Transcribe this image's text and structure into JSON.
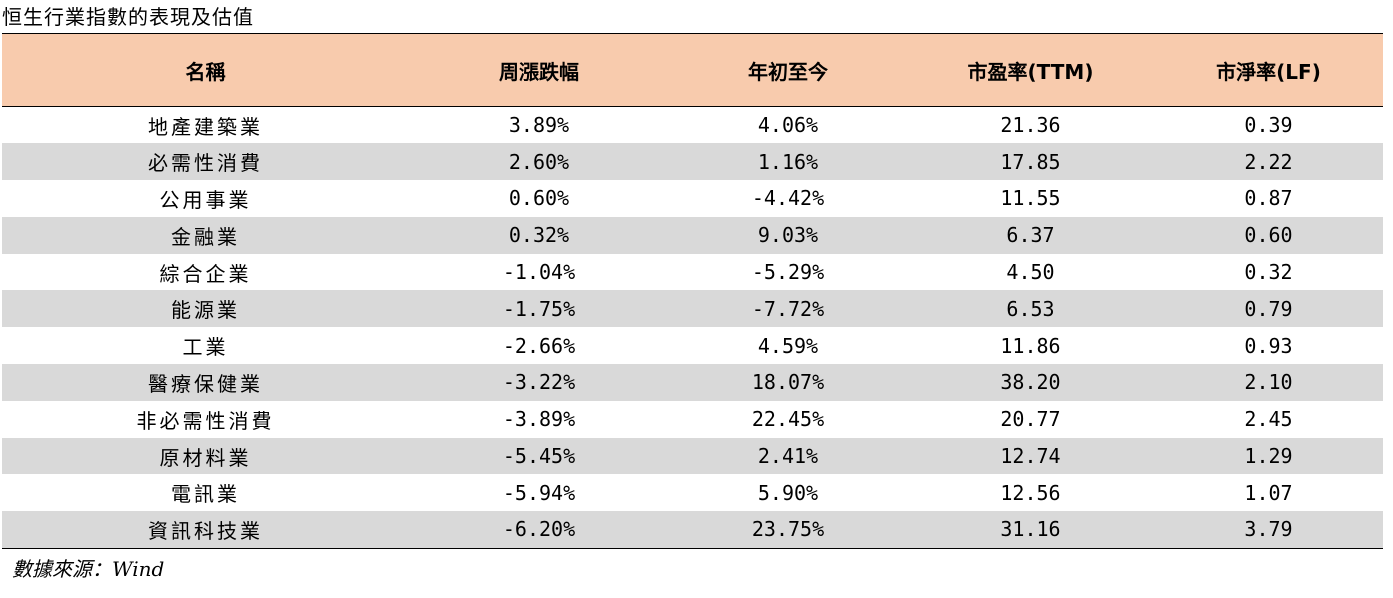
{
  "title": "恒生行業指數的表現及估值",
  "table": {
    "headers": [
      "名稱",
      "周漲跌幅",
      "年初至今",
      "市盈率(TTM)",
      "市淨率(LF)"
    ],
    "rows": [
      {
        "name": "地產建築業",
        "weekly": "3.89%",
        "ytd": "4.06%",
        "pe": "21.36",
        "pb": "0.39"
      },
      {
        "name": "必需性消費",
        "weekly": "2.60%",
        "ytd": "1.16%",
        "pe": "17.85",
        "pb": "2.22"
      },
      {
        "name": "公用事業",
        "weekly": "0.60%",
        "ytd": "-4.42%",
        "pe": "11.55",
        "pb": "0.87"
      },
      {
        "name": "金融業",
        "weekly": "0.32%",
        "ytd": "9.03%",
        "pe": "6.37",
        "pb": "0.60"
      },
      {
        "name": "綜合企業",
        "weekly": "-1.04%",
        "ytd": "-5.29%",
        "pe": "4.50",
        "pb": "0.32"
      },
      {
        "name": "能源業",
        "weekly": "-1.75%",
        "ytd": "-7.72%",
        "pe": "6.53",
        "pb": "0.79"
      },
      {
        "name": "工業",
        "weekly": "-2.66%",
        "ytd": "4.59%",
        "pe": "11.86",
        "pb": "0.93"
      },
      {
        "name": "醫療保健業",
        "weekly": "-3.22%",
        "ytd": "18.07%",
        "pe": "38.20",
        "pb": "2.10"
      },
      {
        "name": "非必需性消費",
        "weekly": "-3.89%",
        "ytd": "22.45%",
        "pe": "20.77",
        "pb": "2.45"
      },
      {
        "name": "原材料業",
        "weekly": "-5.45%",
        "ytd": "2.41%",
        "pe": "12.74",
        "pb": "1.29"
      },
      {
        "name": "電訊業",
        "weekly": "-5.94%",
        "ytd": "5.90%",
        "pe": "12.56",
        "pb": "1.07"
      },
      {
        "name": "資訊科技業",
        "weekly": "-6.20%",
        "ytd": "23.75%",
        "pe": "31.16",
        "pb": "3.79"
      }
    ]
  },
  "source": "數據來源：Wind",
  "colors": {
    "header_bg": "#f8cbad",
    "shade_bg": "#d9d9d9"
  }
}
